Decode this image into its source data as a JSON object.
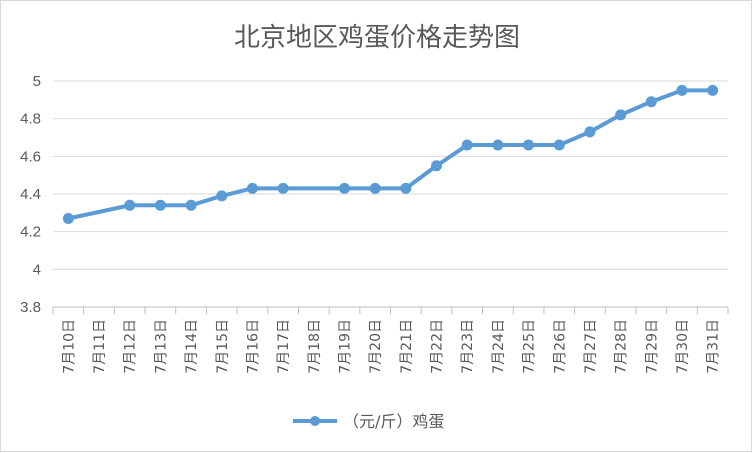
{
  "chart_data": {
    "type": "line",
    "title": "北京地区鸡蛋价格走势图",
    "xlabel": "",
    "ylabel": "",
    "categories": [
      "7月10日",
      "7月11日",
      "7月12日",
      "7月13日",
      "7月14日",
      "7月15日",
      "7月16日",
      "7月17日",
      "7月18日",
      "7月19日",
      "7月20日",
      "7月21日",
      "7月22日",
      "7月23日",
      "7月24日",
      "7月25日",
      "7月26日",
      "7月27日",
      "7月28日",
      "7月29日",
      "7月30日",
      "7月31日"
    ],
    "series": [
      {
        "name": "（元/斤）鸡蛋",
        "values": [
          4.27,
          null,
          4.34,
          4.34,
          4.34,
          4.39,
          4.43,
          4.43,
          null,
          4.43,
          4.43,
          4.43,
          4.55,
          4.66,
          4.66,
          4.66,
          4.66,
          4.73,
          4.82,
          4.89,
          4.95,
          4.95
        ],
        "color": "#5b9bd5"
      }
    ],
    "ylim": [
      3.8,
      5
    ],
    "yticks": [
      "3.8",
      "4",
      "4.2",
      "4.4",
      "4.6",
      "4.8",
      "5"
    ],
    "grid": true,
    "legend": "bottom"
  }
}
